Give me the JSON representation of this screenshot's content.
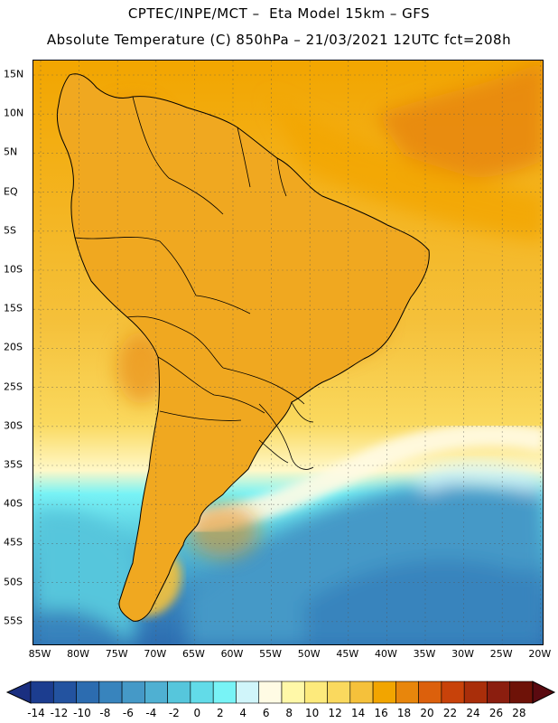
{
  "title_line1": "CPTEC/INPE/MCT –  Eta Model 15km – GFS",
  "title_line2": "Absolute Temperature (C) 850hPa – 21/03/2021 12UTC fct=208h",
  "lat_labels": [
    "15N",
    "10N",
    "5N",
    "EQ",
    "5S",
    "10S",
    "15S",
    "20S",
    "25S",
    "30S",
    "35S",
    "40S",
    "45S",
    "50S",
    "55S"
  ],
  "lon_labels": [
    "85W",
    "80W",
    "75W",
    "70W",
    "65W",
    "60W",
    "55W",
    "50W",
    "45W",
    "40W",
    "35W",
    "30W",
    "25W",
    "20W"
  ],
  "colorbar": {
    "labels": [
      "-14",
      "-12",
      "-10",
      "-8",
      "-6",
      "-4",
      "-2",
      "0",
      "2",
      "4",
      "6",
      "8",
      "10",
      "12",
      "14",
      "16",
      "18",
      "20",
      "22",
      "24",
      "26",
      "28"
    ],
    "colors": [
      "#1c3d8f",
      "#2353a0",
      "#2c6cb0",
      "#3884bd",
      "#4599c7",
      "#4fb0d2",
      "#56c6dc",
      "#62dbe8",
      "#78f3f6",
      "#d0f5fa",
      "#fffbe4",
      "#fff8a8",
      "#fdea7c",
      "#fad95e",
      "#f5c13b",
      "#f2a500",
      "#e8860c",
      "#dc600c",
      "#c8420a",
      "#a92e0a",
      "#8b1e0f",
      "#6e1208"
    ]
  },
  "map": {
    "land_color": "#f0a820",
    "ocean_color_north": "#f3b52b",
    "cold_water_color": "#4fb0d2",
    "hot_core_color": "#e07718",
    "border_color": "#000000",
    "grid_color": "#555555"
  }
}
